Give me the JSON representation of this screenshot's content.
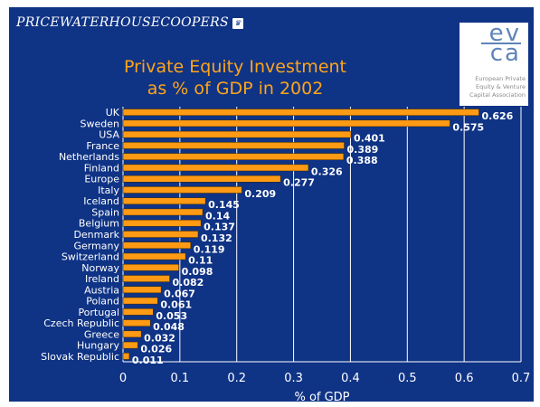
{
  "header": {
    "logo_text": "PRICEWATERHOUSECOOPERS",
    "partner_logo_letters_top": "ev",
    "partner_logo_letters_bottom": "ca",
    "partner_logo_caption": "European Private Equity & Venture Capital Association"
  },
  "chart_data": {
    "type": "bar",
    "orientation": "horizontal",
    "title_lines": [
      "Private Equity Investment",
      "as % of GDP in 2002"
    ],
    "xlabel": "% of GDP",
    "ylabel": "",
    "xlim": [
      0,
      0.7
    ],
    "x_ticks": [
      "0",
      "0.1",
      "0.2",
      "0.3",
      "0.4",
      "0.5",
      "0.6",
      "0.7"
    ],
    "grid": true,
    "bar_color": "#ff9a14",
    "background_color": "#0f3385",
    "categories": [
      "UK",
      "Sweden",
      "USA",
      "France",
      "Netherlands",
      "Finland",
      "Europe",
      "Italy",
      "Iceland",
      "Spain",
      "Belgium",
      "Denmark",
      "Germany",
      "Switzerland",
      "Norway",
      "Ireland",
      "Austria",
      "Poland",
      "Portugal",
      "Czech Republic",
      "Greece",
      "Hungary",
      "Slovak Republic"
    ],
    "values": [
      0.626,
      0.575,
      0.401,
      0.389,
      0.388,
      0.326,
      0.277,
      0.209,
      0.145,
      0.14,
      0.137,
      0.132,
      0.119,
      0.11,
      0.098,
      0.082,
      0.067,
      0.061,
      0.053,
      0.048,
      0.032,
      0.026,
      0.011
    ],
    "value_labels": [
      "0.626",
      "0.575",
      "0.401",
      "0.389",
      "0.388",
      "0.326",
      "0.277",
      "0.209",
      "0.145",
      "0.14",
      "0.137",
      "0.132",
      "0.119",
      "0.11",
      "0.098",
      "0.082",
      "0.067",
      "0.061",
      "0.053",
      "0.048",
      "0.032",
      "0.026",
      "0.011"
    ]
  }
}
